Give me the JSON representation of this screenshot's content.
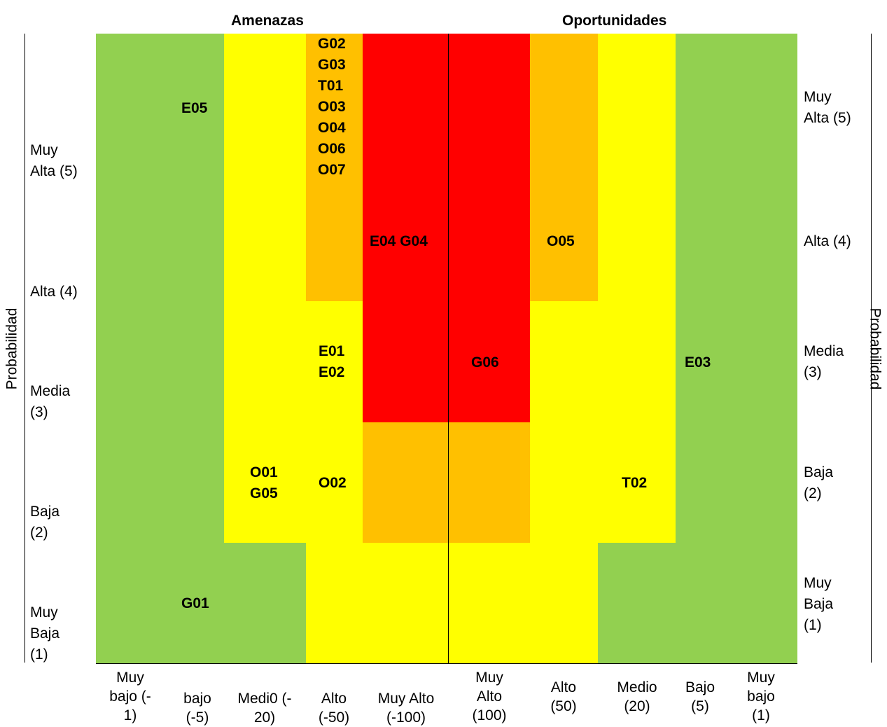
{
  "headers": {
    "threats": "Amenazas",
    "opportunities": "Oportunidades"
  },
  "axis": {
    "left_label": "Probabilidad",
    "right_label": "Probabilidad"
  },
  "left_rows": [
    "Muy\nAlta (5)",
    "Alta (4)",
    "Media\n(3)",
    "Baja\n(2)",
    "Muy\nBaja\n(1)"
  ],
  "right_rows": [
    "Muy\nAlta (5)",
    "Alta (4)",
    "Media\n(3)",
    "Baja\n(2)",
    "Muy\nBaja\n(1)"
  ],
  "columns": [
    "Muy\nbajo (-\n1)",
    "bajo\n(-5)",
    "Medi0 (-\n20)",
    "Alto\n(-50)",
    "Muy Alto\n(-100)",
    "Muy\nAlto\n(100)",
    "Alto\n(50)",
    "Medio\n(20)",
    "Bajo\n(5)",
    "Muy\nbajo\n(1)"
  ],
  "risks": {
    "e05": "E05",
    "stack_alto_5": "G02\nG03\nT01\nO03\nO04\nO06\nO07",
    "e04_g04": "E04 G04",
    "o05": "O05",
    "e01_e02": "E01\nE02",
    "g06": "G06",
    "e03": "E03",
    "o01_g05": "O01\nG05",
    "o02": "O02",
    "t02": "T02",
    "g01": "G01"
  },
  "colors": {
    "green": "#92d050",
    "yellow": "#ffff00",
    "orange": "#ffc000",
    "red": "#ff0000"
  }
}
